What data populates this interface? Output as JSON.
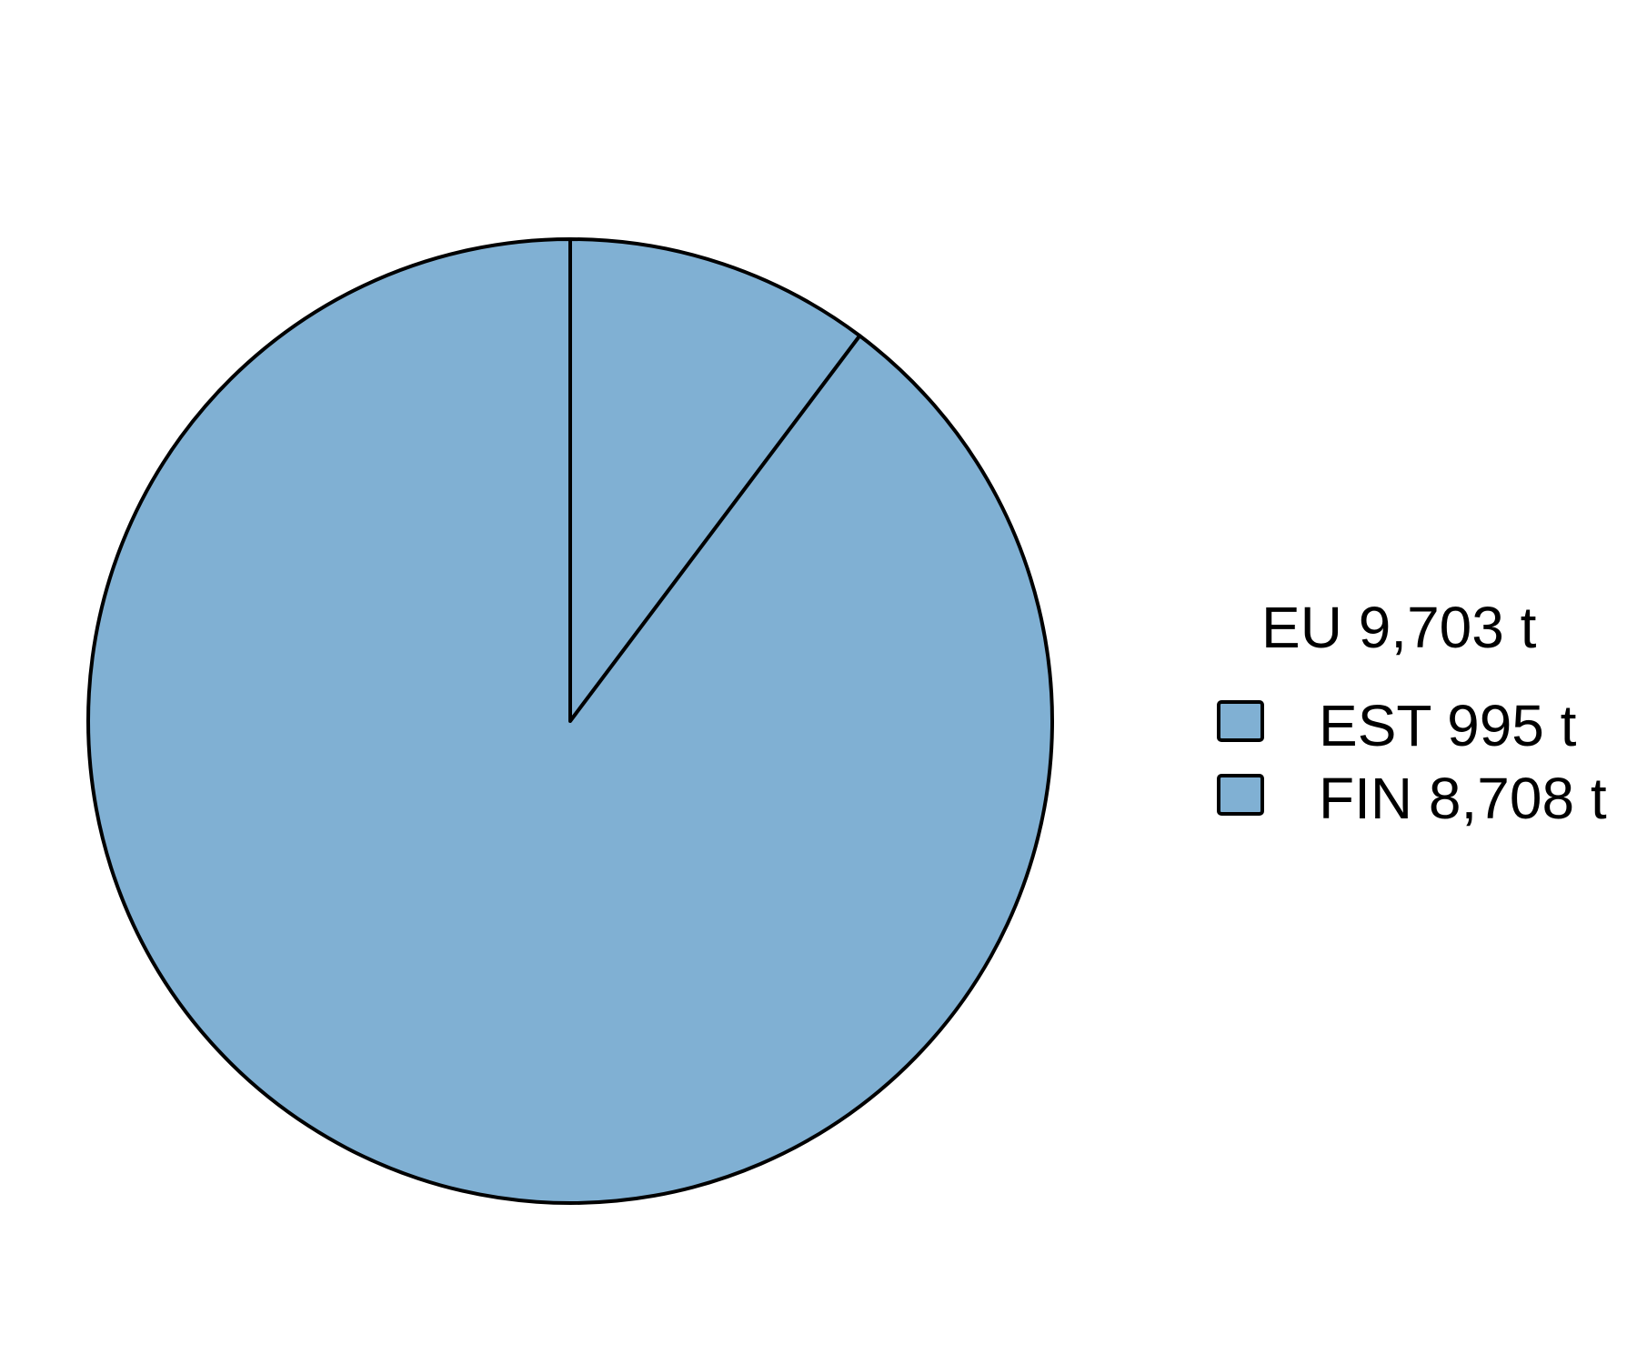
{
  "chart_data": {
    "type": "pie",
    "title": "",
    "total_label": "EU 9,703 t",
    "categories": [
      "EST",
      "FIN"
    ],
    "values": [
      995,
      8708
    ],
    "legend": {
      "position": "right",
      "title": "EU 9,703 t",
      "entries": [
        "EST 995 t",
        "FIN 8,708 t"
      ]
    },
    "start_angle": "top",
    "direction": "clockwise",
    "colors": [
      "#80b0d3",
      "#80b0d3"
    ],
    "stroke_color": "#000000"
  }
}
